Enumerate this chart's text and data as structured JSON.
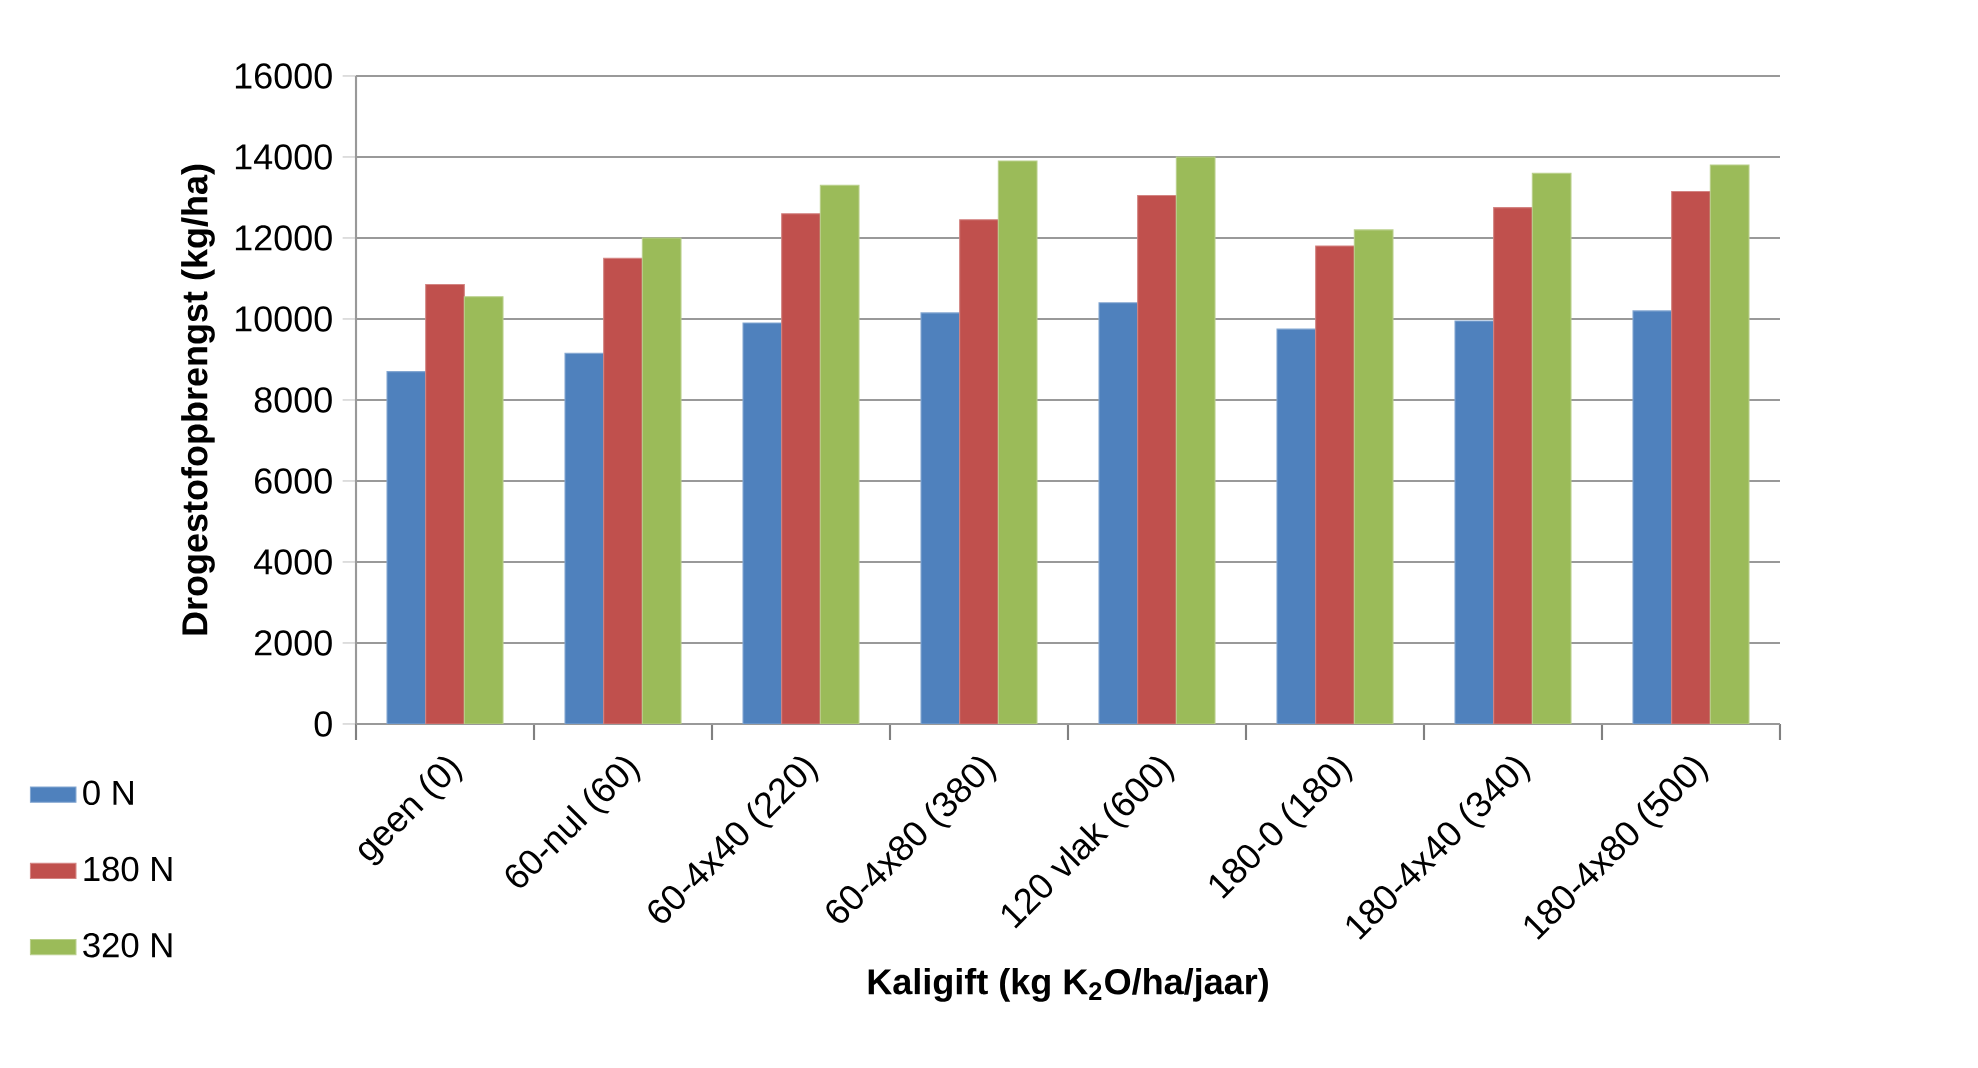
{
  "chart_data": {
    "type": "bar",
    "xlabel": "Kaligift (kg K$_{2}$O/ha/jaar)",
    "ylabel": "Drogestofopbrengst (kg/ha)",
    "categories": [
      "geen (0)",
      "60-nul (60)",
      "60-4x40 (220)",
      "60-4x80 (380)",
      "120 vlak (600)",
      "180-0 (180)",
      "180-4x40 (340)",
      "180-4x80 (500)"
    ],
    "series": [
      {
        "name": "0 N",
        "color": "#4f81bd",
        "values": [
          8700,
          9150,
          9900,
          10150,
          10400,
          9750,
          9950,
          10200
        ]
      },
      {
        "name": "180 N",
        "color": "#c0504d",
        "values": [
          10850,
          11500,
          12600,
          12450,
          13050,
          11800,
          12750,
          13150
        ]
      },
      {
        "name": "320 N",
        "color": "#9bbb59",
        "values": [
          10550,
          12000,
          13300,
          13900,
          14000,
          12200,
          13600,
          13800
        ]
      }
    ],
    "ylim": [
      0,
      16000
    ],
    "yticks": [
      0,
      2000,
      4000,
      6000,
      8000,
      10000,
      12000,
      14000,
      16000
    ],
    "grid": "y",
    "legend": "bottom left"
  }
}
